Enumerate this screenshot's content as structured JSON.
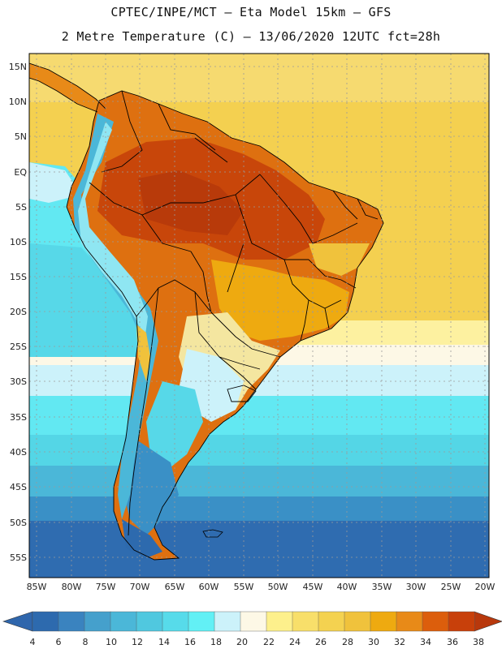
{
  "header": {
    "line1": "CPTEC/INPE/MCT –  Eta Model 15km – GFS",
    "line2": "2 Metre Temperature (C) – 13/06/2020 12UTC fct=28h"
  },
  "map": {
    "lat_labels": [
      "15N",
      "10N",
      "5N",
      "EQ",
      "5S",
      "10S",
      "15S",
      "20S",
      "25S",
      "30S",
      "35S",
      "40S",
      "45S",
      "50S",
      "55S"
    ],
    "lon_labels": [
      "85W",
      "80W",
      "75W",
      "70W",
      "65W",
      "60W",
      "55W",
      "50W",
      "45W",
      "40W",
      "35W",
      "30W",
      "25W",
      "20W"
    ]
  },
  "colorbar": {
    "labels": [
      "4",
      "6",
      "8",
      "10",
      "12",
      "14",
      "16",
      "18",
      "20",
      "22",
      "24",
      "26",
      "28",
      "30",
      "32",
      "34",
      "36",
      "38"
    ],
    "colors": [
      "#2d6aae",
      "#3a83bf",
      "#45a0cc",
      "#4bb7d8",
      "#50c8df",
      "#57dbea",
      "#62f0f5",
      "#ccf2fa",
      "#fdf8e6",
      "#fdf08c",
      "#f8df6a",
      "#f4d250",
      "#f0c23c",
      "#eeaa10",
      "#e88a18",
      "#dc5e0c",
      "#c8400a"
    ],
    "low_color": "#2f66ac",
    "high_color": "#b8380c"
  }
}
